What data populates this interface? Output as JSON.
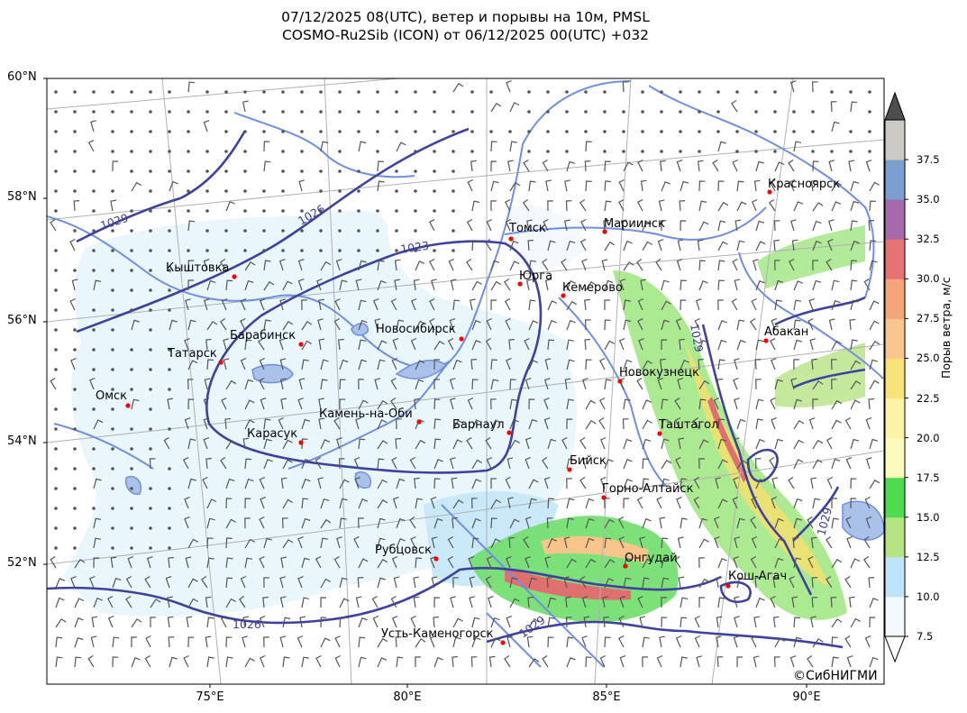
{
  "header": {
    "title_line1": "07/12/2025 08(UTC), ветер и порывы на 10м, PMSL",
    "title_line2": "COSMO-Ru2Sib (ICON) от 06/12/2025 00(UTC) +032"
  },
  "axes": {
    "lat_labels": [
      "60°N",
      "58°N",
      "56°N",
      "54°N",
      "52°N"
    ],
    "lon_labels": [
      "75°E",
      "80°E",
      "85°E",
      "90°E"
    ]
  },
  "cities": [
    {
      "name": "Томск"
    },
    {
      "name": "Мариинск"
    },
    {
      "name": "Красноярск"
    },
    {
      "name": "Кыштовка"
    },
    {
      "name": "Юрга"
    },
    {
      "name": "Кемерово"
    },
    {
      "name": "Барабинск"
    },
    {
      "name": "Новосибирск"
    },
    {
      "name": "Абакан"
    },
    {
      "name": "Татарск"
    },
    {
      "name": "Новокузнецк"
    },
    {
      "name": "Омск"
    },
    {
      "name": "Камень-на-Оби"
    },
    {
      "name": "Барнаул"
    },
    {
      "name": "Таштагол"
    },
    {
      "name": "Карасук"
    },
    {
      "name": "Бийск"
    },
    {
      "name": "Горно-Алтайск"
    },
    {
      "name": "Рубцовск"
    },
    {
      "name": "Онгудай"
    },
    {
      "name": "Кош-Агач"
    },
    {
      "name": "Усть-Каменогорск"
    }
  ],
  "isobar_labels": [
    "1029",
    "1026",
    "1023",
    "1026",
    "1029",
    "1029",
    "1029"
  ],
  "colorbar": {
    "label": "Порыв ветра, м/с",
    "ticks": [
      "7.5",
      "10.0",
      "12.5",
      "15.0",
      "17.5",
      "20.0",
      "22.5",
      "25.0",
      "27.5",
      "30.0",
      "32.5",
      "35.0",
      "37.5"
    ],
    "colors": [
      "#f3f9fe",
      "#bfe4f8",
      "#b6e383",
      "#4fdb4f",
      "#fbfbbd",
      "#fbf3a6",
      "#f7e27a",
      "#f8c68e",
      "#f6a47a",
      "#e47474",
      "#a56aa9",
      "#7b9fcf",
      "#cdc9c5"
    ],
    "over_color": "#4d4d4d"
  },
  "footer": {
    "copyright": "©СибНИГМИ"
  }
}
